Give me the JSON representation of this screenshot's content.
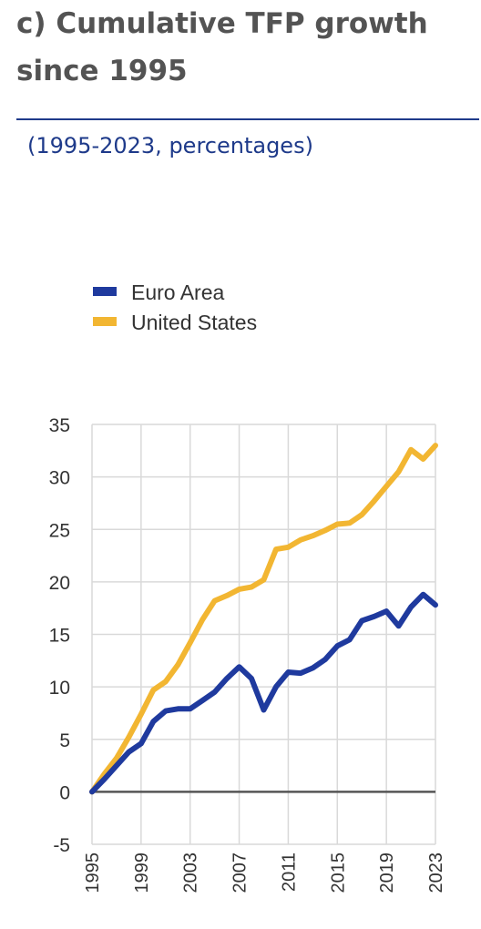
{
  "header": {
    "title_line1": "c) Cumulative TFP growth",
    "title_line2": "since 1995",
    "subtitle": "(1995-2023, percentages)"
  },
  "chart_data": {
    "type": "line",
    "title": "c) Cumulative TFP growth since 1995",
    "subtitle": "(1995-2023, percentages)",
    "xlabel": "",
    "ylabel": "",
    "x_range": [
      1995,
      2023
    ],
    "x_ticks": [
      1995,
      1999,
      2003,
      2007,
      2011,
      2015,
      2019,
      2023
    ],
    "ylim": [
      -5,
      35
    ],
    "y_ticks": [
      -5,
      0,
      5,
      10,
      15,
      20,
      25,
      30,
      35
    ],
    "grid": true,
    "legend_position": "top-left",
    "x": [
      1995,
      1996,
      1997,
      1998,
      1999,
      2000,
      2001,
      2002,
      2003,
      2004,
      2005,
      2006,
      2007,
      2008,
      2009,
      2010,
      2011,
      2012,
      2013,
      2014,
      2015,
      2016,
      2017,
      2018,
      2019,
      2020,
      2021,
      2022,
      2023
    ],
    "series": [
      {
        "name": "Euro Area",
        "color": "#1f3a9e",
        "values": [
          0,
          1.2,
          2.5,
          3.8,
          4.6,
          6.7,
          7.7,
          7.9,
          7.9,
          8.7,
          9.5,
          10.8,
          11.9,
          10.8,
          7.8,
          10.0,
          11.4,
          11.3,
          11.8,
          12.6,
          13.9,
          14.5,
          16.3,
          16.7,
          17.2,
          15.8,
          17.6,
          18.8,
          17.8
        ]
      },
      {
        "name": "United States",
        "color": "#f2b632",
        "values": [
          0,
          1.7,
          3.2,
          5.2,
          7.4,
          9.7,
          10.5,
          12.1,
          14.2,
          16.4,
          18.2,
          18.7,
          19.3,
          19.5,
          20.2,
          23.1,
          23.3,
          24.0,
          24.4,
          24.9,
          25.5,
          25.6,
          26.4,
          27.7,
          29.1,
          30.5,
          32.6,
          31.7,
          33.0
        ]
      }
    ]
  }
}
